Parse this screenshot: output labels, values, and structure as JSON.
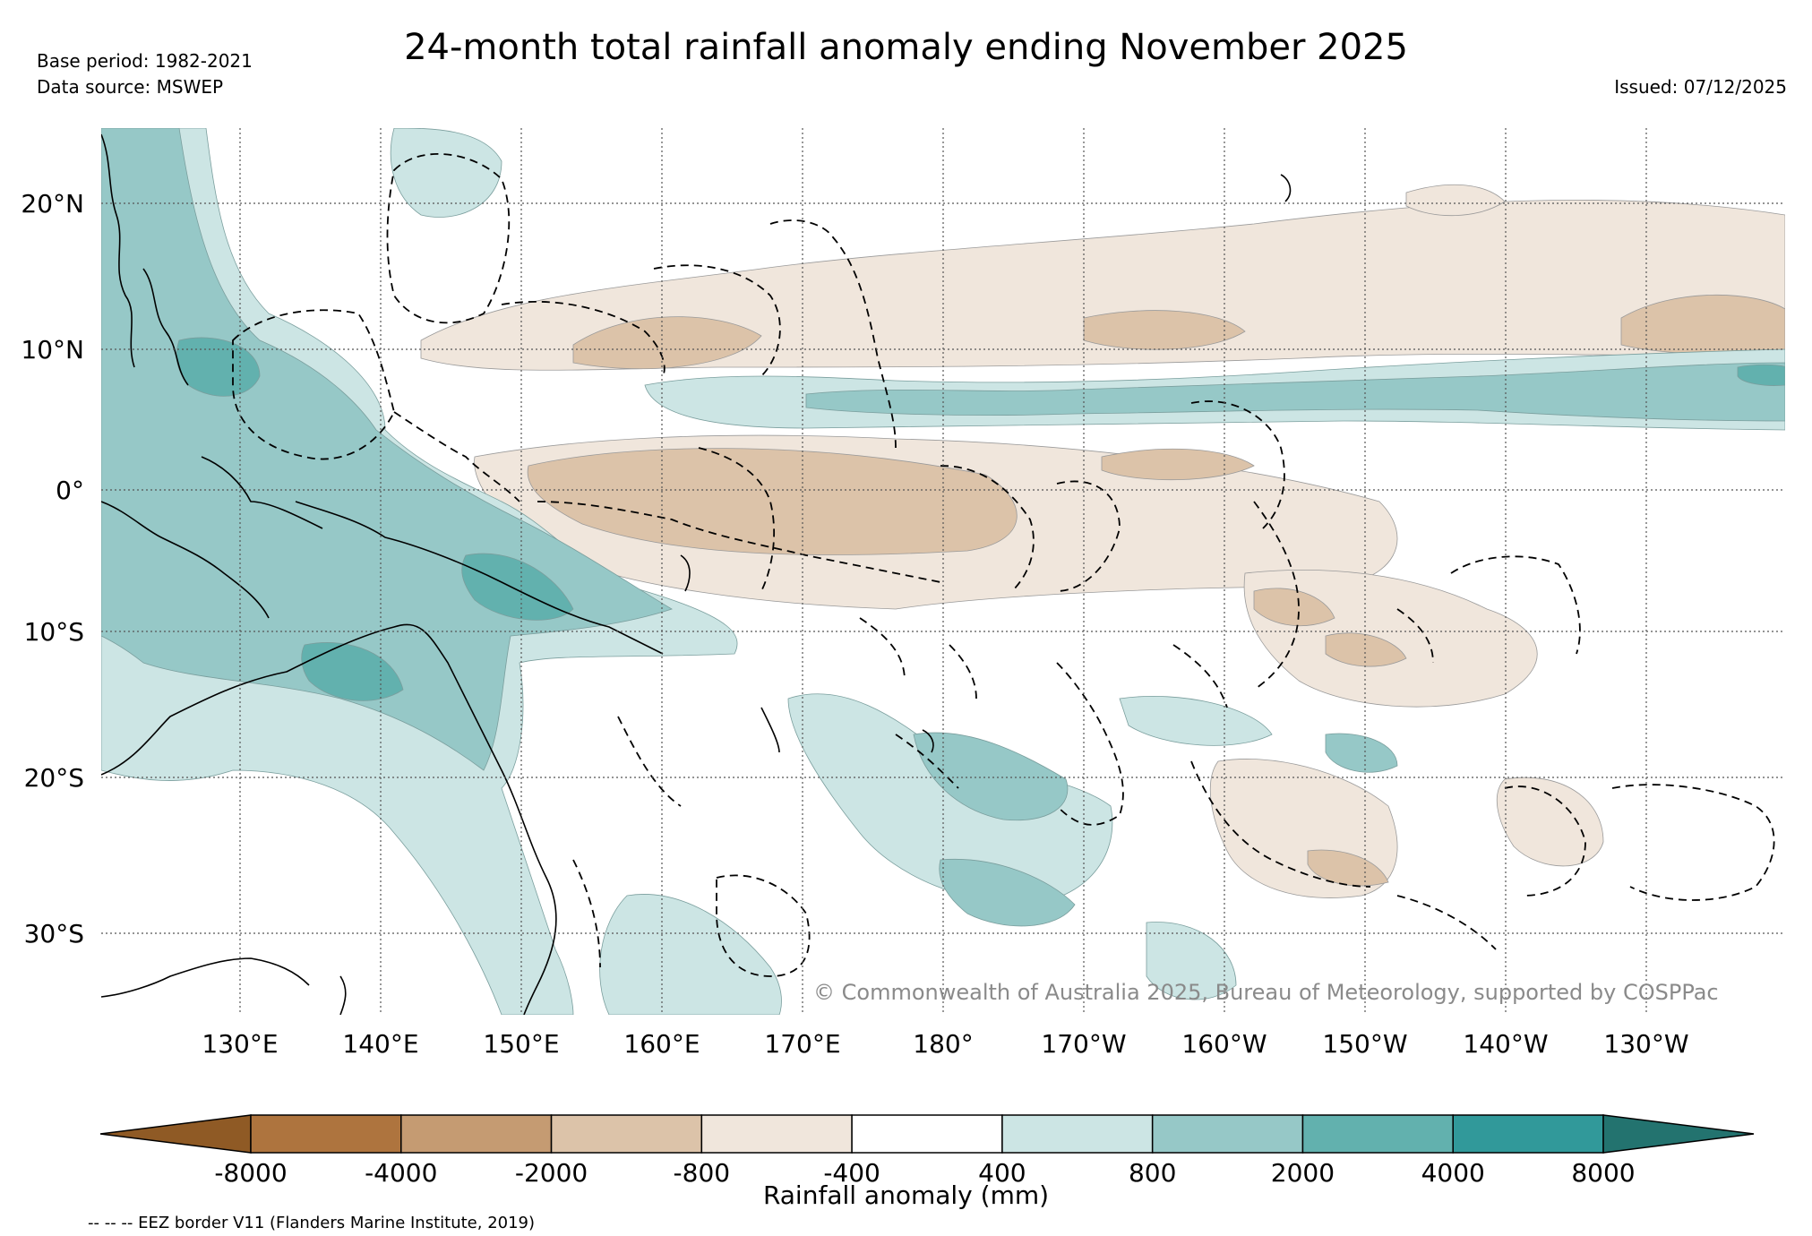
{
  "title": "24-month total rainfall anomaly ending November 2025",
  "base_period": "Base period: 1982-2021",
  "data_source": "Data source: MSWEP",
  "issued": "Issued: 07/12/2025",
  "copyright": "© Commonwealth of Australia 2025, Bureau of Meteorology, supported by COSPPac",
  "lat_labels": [
    "20°N",
    "10°N",
    "0°",
    "10°S",
    "20°S",
    "30°S"
  ],
  "lon_labels": [
    "130°E",
    "140°E",
    "150°E",
    "160°E",
    "170°E",
    "180°",
    "170°W",
    "160°W",
    "150°W",
    "140°W",
    "130°W"
  ],
  "colorbar": {
    "label": "Rainfall anomaly (mm)",
    "ticks": [
      "-8000",
      "-4000",
      "-2000",
      "-800",
      "-400",
      "400",
      "800",
      "2000",
      "4000",
      "8000"
    ],
    "colors": [
      "#8f5a25",
      "#ae743e",
      "#c59b72",
      "#dcc3a9",
      "#f0e6dc",
      "#ffffff",
      "#cce5e4",
      "#96c8c7",
      "#62b1ae",
      "#31999a",
      "#23736f"
    ]
  },
  "eez_note": "-- -- -- EEZ border V11 (Flanders Marine Institute, 2019)"
}
